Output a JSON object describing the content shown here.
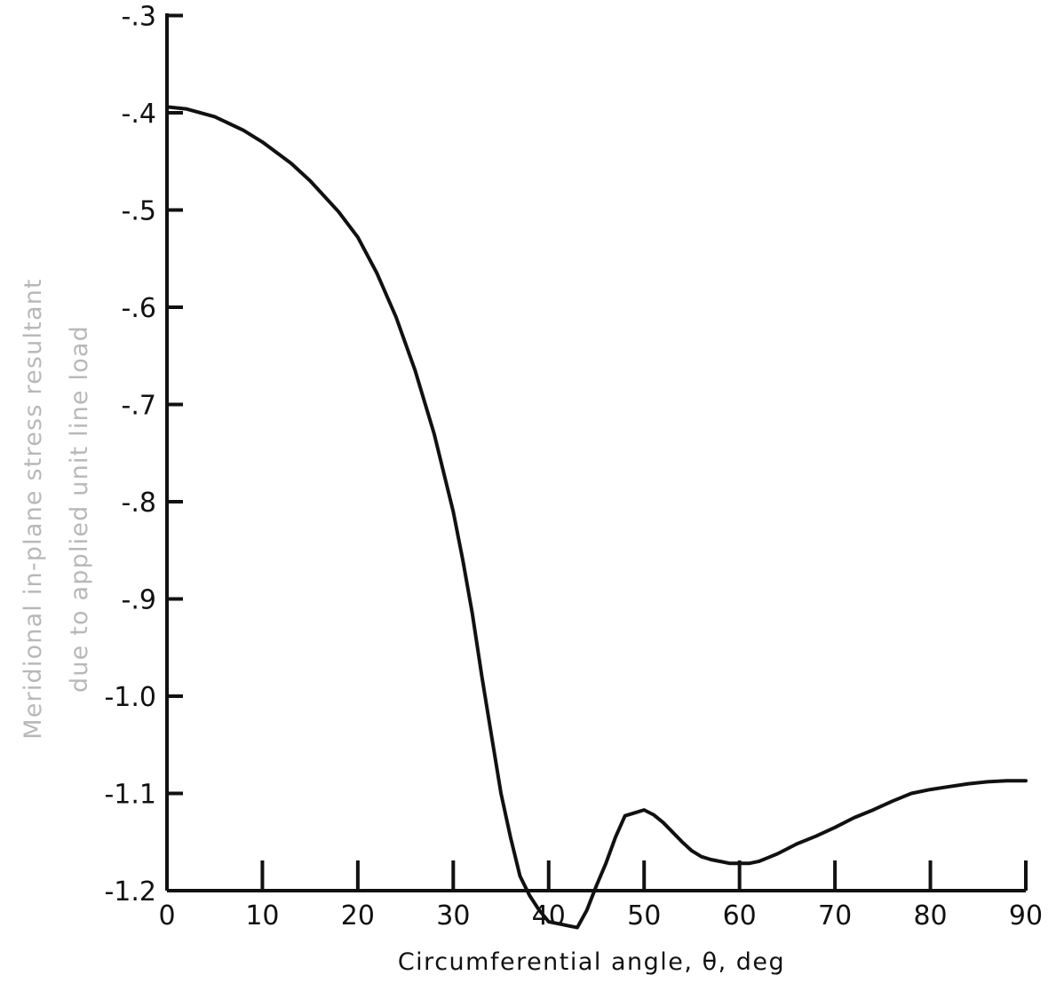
{
  "chart_data": {
    "type": "line",
    "title": "",
    "xlabel": "Circumferential angle, θ, deg",
    "ylabel_lines": [
      "Meridional in-plane stress resultant",
      "due to applied unit line load"
    ],
    "xlim": [
      0,
      90
    ],
    "ylim": [
      -1.2,
      -0.3
    ],
    "x_ticks": [
      0,
      10,
      20,
      30,
      40,
      50,
      60,
      70,
      80,
      90
    ],
    "x_tick_labels": [
      "0",
      "10",
      "20",
      "30",
      "40",
      "50",
      "60",
      "70",
      "80",
      "90"
    ],
    "y_ticks": [
      -0.3,
      -0.4,
      -0.5,
      -0.6,
      -0.7,
      -0.8,
      -0.9,
      -1.0,
      -1.1,
      -1.2
    ],
    "y_tick_labels": [
      "-.3",
      "-.4",
      "-.5",
      "-.6",
      "-.7",
      "-.8",
      "-.9",
      "-1.0",
      "-1.1",
      "-1.2"
    ],
    "grid": false,
    "legend": "none",
    "line_color": "#111111",
    "series": [
      {
        "x": [
          0,
          2,
          5,
          8,
          10,
          13,
          15,
          18,
          20,
          22,
          24,
          26,
          28,
          30,
          31,
          32,
          33,
          34,
          35,
          36,
          37,
          38,
          39,
          40,
          41,
          42,
          43,
          44,
          45,
          46,
          47,
          48,
          49,
          50,
          51,
          52,
          53,
          54,
          55,
          56,
          57,
          58,
          59,
          60,
          61,
          62,
          63,
          64,
          65,
          66,
          68,
          70,
          72,
          74,
          76,
          78,
          80,
          82,
          84,
          86,
          88,
          90
        ],
        "y": [
          -0.394,
          -0.396,
          -0.404,
          -0.418,
          -0.43,
          -0.452,
          -0.47,
          -0.502,
          -0.528,
          -0.565,
          -0.61,
          -0.665,
          -0.73,
          -0.81,
          -0.86,
          -0.915,
          -0.98,
          -1.04,
          -1.1,
          -1.145,
          -1.185,
          -1.205,
          -1.22,
          -1.232,
          -1.234,
          -1.236,
          -1.238,
          -1.22,
          -1.195,
          -1.172,
          -1.145,
          -1.123,
          -1.12,
          -1.117,
          -1.122,
          -1.13,
          -1.14,
          -1.15,
          -1.159,
          -1.165,
          -1.168,
          -1.17,
          -1.172,
          -1.172,
          -1.172,
          -1.17,
          -1.166,
          -1.162,
          -1.157,
          -1.152,
          -1.144,
          -1.135,
          -1.125,
          -1.117,
          -1.108,
          -1.1,
          -1.096,
          -1.093,
          -1.09,
          -1.088,
          -1.087,
          -1.087
        ]
      }
    ]
  }
}
